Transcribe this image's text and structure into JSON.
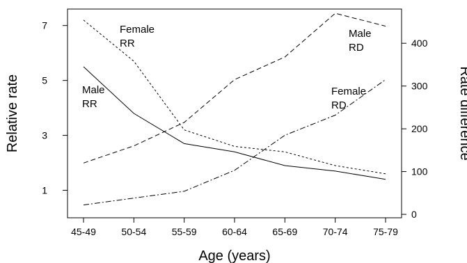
{
  "chart_data": {
    "type": "line",
    "xlabel": "Age (years)",
    "ylabel_left": "Relative rate",
    "ylabel_right": "Rate difference",
    "categories": [
      "45-49",
      "50-54",
      "55-59",
      "60-64",
      "65-69",
      "70-74",
      "75-79"
    ],
    "y_left": {
      "range": [
        0,
        7.6
      ],
      "ticks": [
        1,
        3,
        5,
        7
      ]
    },
    "y_right": {
      "range": [
        -8,
        480
      ],
      "ticks": [
        0,
        100,
        200,
        300,
        400
      ]
    },
    "grid": false,
    "legend": "none",
    "series": [
      {
        "name": "Male RR",
        "axis": "left",
        "dash": "solid",
        "values": [
          5.5,
          3.8,
          2.7,
          2.4,
          1.9,
          1.7,
          1.4
        ]
      },
      {
        "name": "Female RR",
        "axis": "left",
        "dash": "dotted",
        "values": [
          7.2,
          5.7,
          3.2,
          2.6,
          2.4,
          1.9,
          1.6
        ]
      },
      {
        "name": "Male RD",
        "axis": "right",
        "dash": "dashed",
        "values": [
          120,
          160,
          215,
          315,
          368,
          470,
          440
        ]
      },
      {
        "name": "Female RD",
        "axis": "right",
        "dash": "dashdot",
        "values": [
          22,
          38,
          54,
          103,
          185,
          232,
          315
        ]
      }
    ],
    "annotations": [
      {
        "series": 1,
        "line1": "Female",
        "line2": "RR"
      },
      {
        "series": 0,
        "line1": "Male",
        "line2": "RR"
      },
      {
        "series": 2,
        "line1": "Male",
        "line2": "RD"
      },
      {
        "series": 3,
        "line1": "Female",
        "line2": "RD"
      }
    ]
  }
}
